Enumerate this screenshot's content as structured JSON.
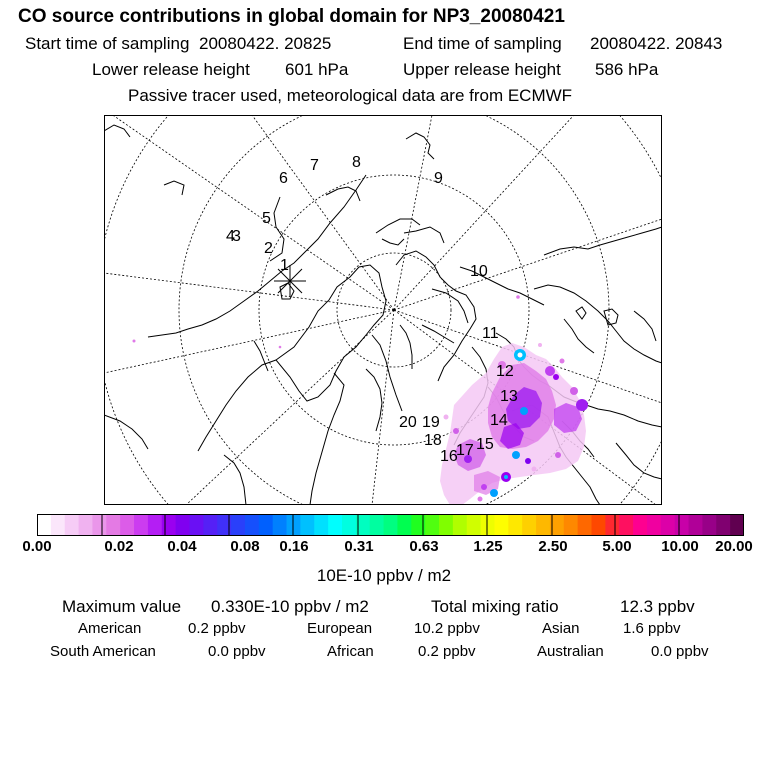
{
  "header": {
    "title": "CO  source contributions in global domain for NP3_20080421",
    "start_label": "Start time of sampling",
    "start_value": "20080422. 20825",
    "end_label": "End time of sampling",
    "end_value": "20080422. 20843",
    "lower_label": "Lower release height",
    "lower_value": "601 hPa",
    "upper_label": "Upper release height",
    "upper_value": "586 hPa",
    "note": "Passive tracer used, meteorological data are from ECMWF"
  },
  "map": {
    "projection": "polar stereographic (north)",
    "trajectory_labels": [
      "1",
      "2",
      "3",
      "4",
      "5",
      "6",
      "7",
      "8",
      "9",
      "10",
      "11",
      "12",
      "13",
      "14",
      "15",
      "16",
      "17",
      "18",
      "19",
      "20"
    ]
  },
  "colorbar": {
    "tick_labels": [
      "0.00",
      "0.02",
      "0.04",
      "0.08",
      "0.16",
      "0.31",
      "0.63",
      "1.25",
      "2.50",
      "5.00",
      "10.00",
      "20.00"
    ],
    "unit": "10E-10 ppbv / m2",
    "colors": [
      "#ffffff",
      "#fbe6fb",
      "#f6ccf6",
      "#f0b2f0",
      "#ea96ea",
      "#e47ae4",
      "#dc5ce8",
      "#cc3cf0",
      "#b41ef4",
      "#9a00f0",
      "#8000f0",
      "#6a10f4",
      "#5520f6",
      "#4030f8",
      "#2a40fa",
      "#1650fc",
      "#0060fe",
      "#0080fe",
      "#00a0fe",
      "#00c0fe",
      "#00e0fe",
      "#00fefe",
      "#00fee0",
      "#00fec0",
      "#00fea0",
      "#00fe80",
      "#00fe50",
      "#20fe20",
      "#50fe10",
      "#80fe00",
      "#b0fe00",
      "#d0fe00",
      "#eefe00",
      "#fefe00",
      "#fee800",
      "#fed000",
      "#feb800",
      "#fea000",
      "#fe8800",
      "#fe6800",
      "#fe4800",
      "#fe2830",
      "#fe1060",
      "#fe0090",
      "#f000a0",
      "#dc00a8",
      "#c800a8",
      "#b00098",
      "#980088",
      "#800070",
      "#600050"
    ]
  },
  "stats": {
    "max_label": "Maximum value",
    "max_value": "0.330E-10 ppbv / m2",
    "total_label": "Total mixing ratio",
    "total_value": "12.3 ppbv",
    "regions": [
      {
        "name": "American",
        "value": "0.2 ppbv"
      },
      {
        "name": "European",
        "value": "10.2 ppbv"
      },
      {
        "name": "Asian",
        "value": "1.6 ppbv"
      },
      {
        "name": "South American",
        "value": "0.0 ppbv"
      },
      {
        "name": "African",
        "value": "0.2 ppbv"
      },
      {
        "name": "Australian",
        "value": "0.0 ppbv"
      }
    ]
  }
}
